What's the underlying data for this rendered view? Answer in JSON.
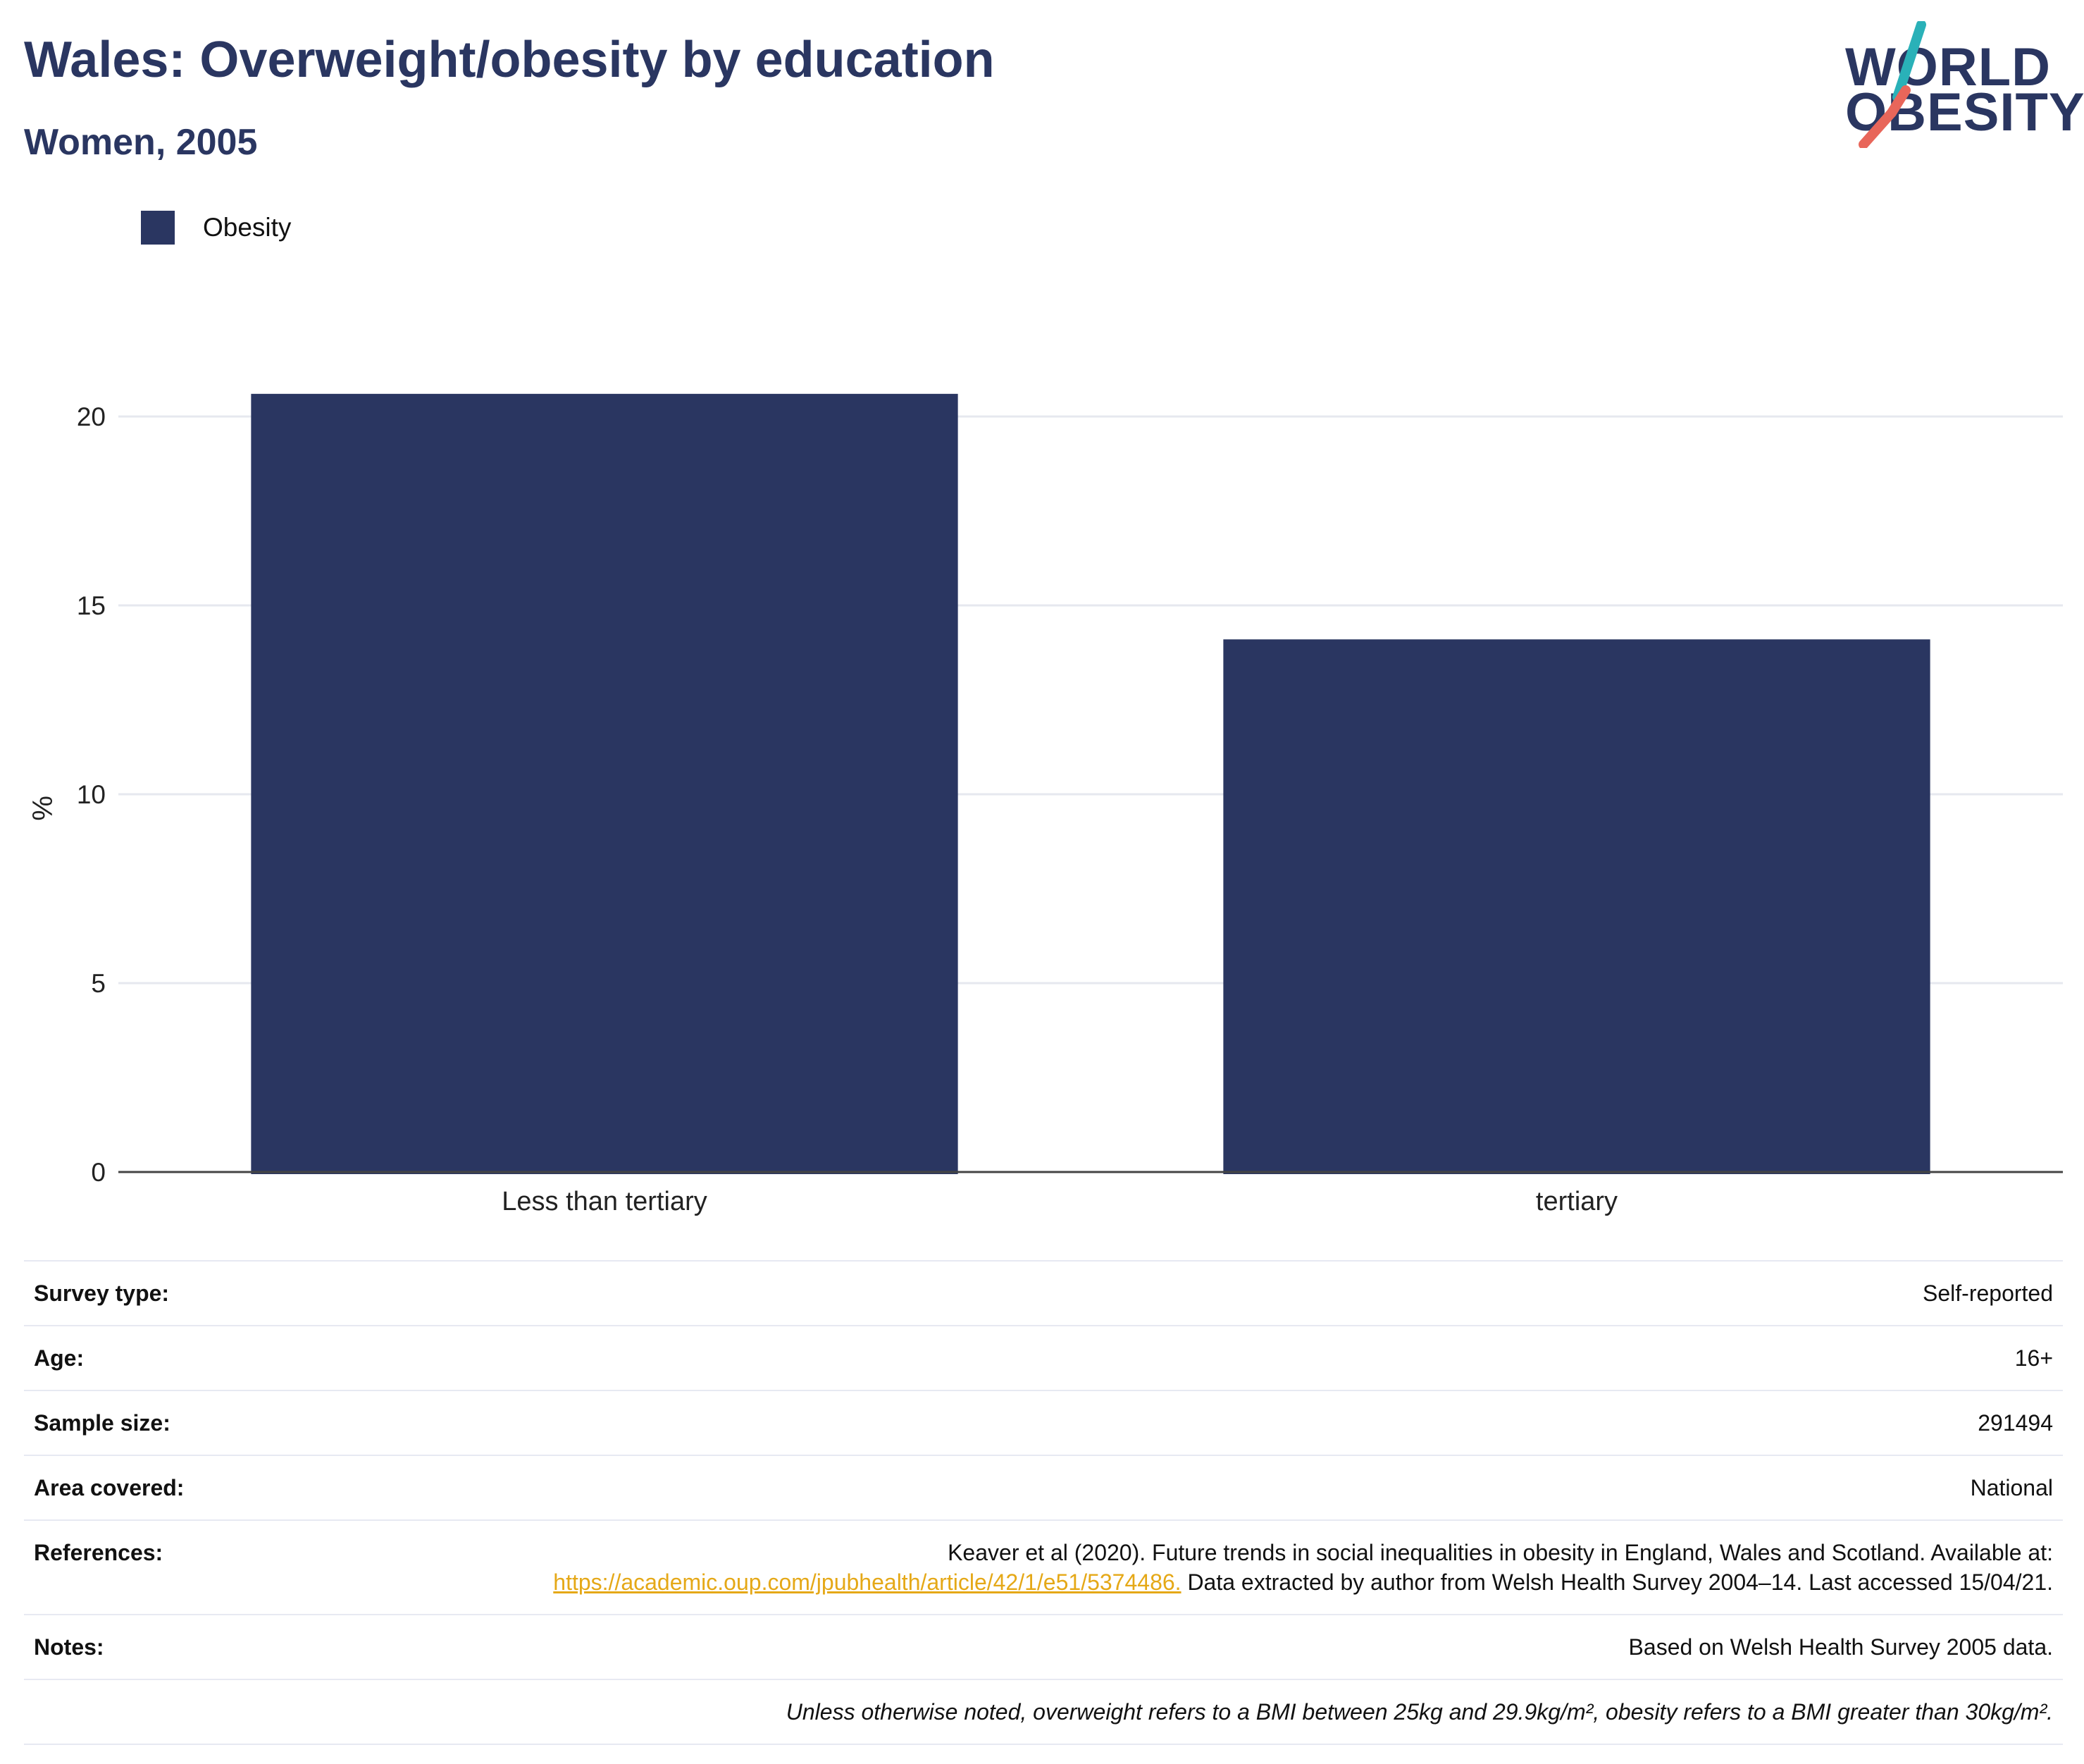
{
  "header": {
    "title": "Wales: Overweight/obesity by education",
    "subtitle": "Women, 2005"
  },
  "logo": {
    "line1": "WORLD",
    "line2": "OBESITY",
    "accent_colors": [
      "#2ab1b8",
      "#e8665a"
    ]
  },
  "colors": {
    "bar": "#2a3661",
    "title": "#2a3661",
    "grid": "#e6e8ef",
    "axis": "#444444",
    "link": "#e5a817"
  },
  "chart_data": {
    "type": "bar",
    "categories": [
      "Less than tertiary",
      "tertiary"
    ],
    "series": [
      {
        "name": "Obesity",
        "values": [
          20.6,
          14.1
        ]
      }
    ],
    "ylabel": "%",
    "xlabel": "",
    "ylim": [
      0,
      21.5
    ],
    "yticks": [
      0,
      5,
      10,
      15,
      20
    ],
    "grid": true,
    "legend_position": "top-left"
  },
  "info": {
    "survey_type": {
      "label": "Survey type:",
      "value": "Self-reported"
    },
    "age": {
      "label": "Age:",
      "value": "16+"
    },
    "sample_size": {
      "label": "Sample size:",
      "value": "291494"
    },
    "area": {
      "label": "Area covered:",
      "value": "National"
    },
    "references": {
      "label": "References:",
      "text_before": "Keaver et al (2020). Future trends in social inequalities in obesity in England, Wales and Scotland. Available at:",
      "link": "https://academic.oup.com/jpubhealth/article/42/1/e51/5374486.",
      "text_after": "Data extracted by author from Welsh Health Survey 2004–14. Last accessed 15/04/21."
    },
    "notes": {
      "label": "Notes:",
      "value": "Based on Welsh Health Survey 2005 data."
    },
    "footnote": "Unless otherwise noted, overweight refers to a BMI between 25kg and 29.9kg/m², obesity refers to a BMI greater than 30kg/m²."
  }
}
